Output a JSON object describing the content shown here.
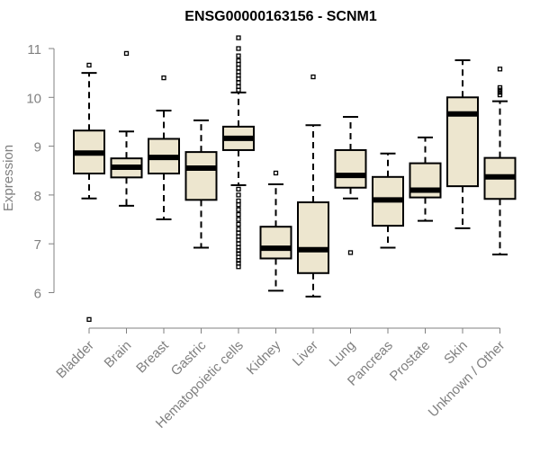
{
  "chart_data": {
    "type": "boxplot",
    "title": "ENSG00000163156 - SCNM1",
    "xlabel": "",
    "ylabel": "Expression",
    "ylim": [
      5.4,
      11.3
    ],
    "yticks": [
      6,
      7,
      8,
      9,
      10,
      11
    ],
    "grid": false,
    "colors": {
      "box_fill": "#ede6cf",
      "stroke": "#000000",
      "axis": "#808080",
      "text": "#808080"
    },
    "categories": [
      "Bladder",
      "Brain",
      "Breast",
      "Gastric",
      "Hematopoietic cells",
      "Kidney",
      "Liver",
      "Lung",
      "Pancreas",
      "Prostate",
      "Skin",
      "Unknown / Other"
    ],
    "boxes": [
      {
        "category": "Bladder",
        "whisker_low": 7.93,
        "q1": 8.44,
        "median": 8.86,
        "q3": 9.32,
        "whisker_high": 10.5,
        "outliers": [
          10.66,
          5.45
        ]
      },
      {
        "category": "Brain",
        "whisker_low": 7.78,
        "q1": 8.36,
        "median": 8.57,
        "q3": 8.75,
        "whisker_high": 9.3,
        "outliers": [
          10.9
        ]
      },
      {
        "category": "Breast",
        "whisker_low": 7.5,
        "q1": 8.44,
        "median": 8.77,
        "q3": 9.15,
        "whisker_high": 9.73,
        "outliers": [
          10.4
        ]
      },
      {
        "category": "Gastric",
        "whisker_low": 6.92,
        "q1": 7.9,
        "median": 8.55,
        "q3": 8.88,
        "whisker_high": 9.53,
        "outliers": []
      },
      {
        "category": "Hematopoietic cells",
        "whisker_low": 8.2,
        "q1": 8.92,
        "median": 9.16,
        "q3": 9.4,
        "whisker_high": 10.1,
        "outliers": [
          11.22,
          11.0,
          10.85,
          10.75,
          10.68,
          10.6,
          10.52,
          10.45,
          10.38,
          10.3,
          10.22,
          10.15,
          8.12,
          8.0,
          7.88,
          7.8,
          7.7,
          7.6,
          7.5,
          7.4,
          7.3,
          7.22,
          7.15,
          7.08,
          7.0,
          6.93,
          6.86,
          6.8,
          6.73,
          6.66,
          6.6,
          6.53
        ]
      },
      {
        "category": "Kidney",
        "whisker_low": 6.04,
        "q1": 6.7,
        "median": 6.91,
        "q3": 7.35,
        "whisker_high": 8.22,
        "outliers": [
          8.45
        ]
      },
      {
        "category": "Liver",
        "whisker_low": 5.92,
        "q1": 6.4,
        "median": 6.88,
        "q3": 7.85,
        "whisker_high": 9.43,
        "outliers": [
          10.42
        ]
      },
      {
        "category": "Lung",
        "whisker_low": 7.93,
        "q1": 8.15,
        "median": 8.4,
        "q3": 8.92,
        "whisker_high": 9.6,
        "outliers": [
          6.82
        ]
      },
      {
        "category": "Pancreas",
        "whisker_low": 6.92,
        "q1": 7.37,
        "median": 7.9,
        "q3": 8.37,
        "whisker_high": 8.85,
        "outliers": []
      },
      {
        "category": "Prostate",
        "whisker_low": 7.47,
        "q1": 7.95,
        "median": 8.1,
        "q3": 8.65,
        "whisker_high": 9.18,
        "outliers": []
      },
      {
        "category": "Skin",
        "whisker_low": 7.32,
        "q1": 8.18,
        "median": 9.66,
        "q3": 10.0,
        "whisker_high": 10.76,
        "outliers": []
      },
      {
        "category": "Unknown / Other",
        "whisker_low": 6.78,
        "q1": 7.92,
        "median": 8.37,
        "q3": 8.76,
        "whisker_high": 9.92,
        "outliers": [
          10.58,
          10.2,
          10.15,
          10.1,
          10.05
        ]
      }
    ]
  }
}
